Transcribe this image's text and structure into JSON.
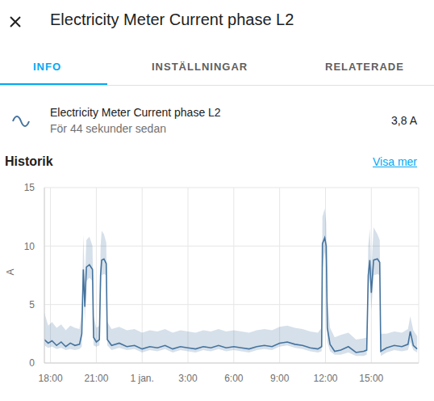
{
  "header": {
    "title": "Electricity Meter Current phase L2"
  },
  "tabs": [
    {
      "label": "INFO",
      "active": true
    },
    {
      "label": "INSTÄLLNINGAR",
      "active": false
    },
    {
      "label": "RELATERADE",
      "active": false
    }
  ],
  "entity": {
    "name": "Electricity Meter Current phase L2",
    "last_changed": "För 44 sekunder sedan",
    "state": "3,8 A"
  },
  "history": {
    "title": "Historik",
    "link": "Visa mer"
  },
  "chart_data": {
    "type": "line",
    "y_label": "A",
    "x": [
      17.6,
      17.85,
      18.1,
      18.4,
      18.7,
      19.0,
      19.3,
      19.6,
      19.9,
      20.05,
      20.15,
      20.25,
      20.35,
      20.55,
      20.75,
      20.82,
      21.0,
      21.2,
      21.28,
      21.35,
      21.5,
      21.65,
      21.72,
      22.0,
      22.5,
      23.0,
      23.5,
      24.0,
      24.5,
      25.0,
      25.5,
      26.0,
      26.5,
      27.0,
      27.5,
      28.0,
      28.5,
      29.0,
      29.5,
      30.0,
      30.5,
      31.0,
      31.5,
      32.0,
      32.5,
      33.0,
      33.5,
      34.0,
      34.5,
      35.0,
      35.5,
      35.75,
      35.8,
      35.95,
      36.05,
      36.12,
      36.3,
      36.6,
      37.0,
      37.5,
      38.0,
      38.5,
      38.7,
      38.8,
      38.9,
      39.0,
      39.15,
      39.4,
      39.55,
      39.62,
      40.0,
      40.5,
      41.0,
      41.4,
      41.55,
      41.75,
      42.0
    ],
    "series": [
      {
        "color": "#44739e",
        "values": [
          2.0,
          1.7,
          1.9,
          1.5,
          1.8,
          1.4,
          1.7,
          1.5,
          1.6,
          2.5,
          8.0,
          4.8,
          8.2,
          8.4,
          8.0,
          2.2,
          1.8,
          2.0,
          7.5,
          8.8,
          8.9,
          8.5,
          2.0,
          1.5,
          1.7,
          1.4,
          1.5,
          1.2,
          1.4,
          1.3,
          1.5,
          1.2,
          1.4,
          1.3,
          1.2,
          1.4,
          1.3,
          1.5,
          1.3,
          1.4,
          1.3,
          1.2,
          1.4,
          1.5,
          1.4,
          1.7,
          1.8,
          1.6,
          1.5,
          1.3,
          1.2,
          1.4,
          10.2,
          10.7,
          10.0,
          3.0,
          1.6,
          1.0,
          1.1,
          1.4,
          0.9,
          1.0,
          1.1,
          7.5,
          8.8,
          6.0,
          8.8,
          8.9,
          8.6,
          1.0,
          1.3,
          1.5,
          1.4,
          1.6,
          2.7,
          1.5,
          1.2
        ],
        "min": [
          1.5,
          1.3,
          1.4,
          1.2,
          1.3,
          1.1,
          1.2,
          1.1,
          1.2,
          1.4,
          6.5,
          3.5,
          7.0,
          7.3,
          7.0,
          1.5,
          1.4,
          1.5,
          5.5,
          7.5,
          7.6,
          7.5,
          1.5,
          1.1,
          1.3,
          1.1,
          1.2,
          0.9,
          1.1,
          1.0,
          1.2,
          0.9,
          1.1,
          1.0,
          0.9,
          1.1,
          1.0,
          1.2,
          1.0,
          1.1,
          1.0,
          0.9,
          1.1,
          1.2,
          1.1,
          1.4,
          1.5,
          1.3,
          1.2,
          1.0,
          0.9,
          1.0,
          8.0,
          9.5,
          8.5,
          1.8,
          1.0,
          0.7,
          0.7,
          0.9,
          0.6,
          0.6,
          0.7,
          6.0,
          7.5,
          4.5,
          7.5,
          7.6,
          7.5,
          0.6,
          0.9,
          1.1,
          1.0,
          1.1,
          1.8,
          1.1,
          0.9
        ],
        "max": [
          4.3,
          3.2,
          3.5,
          3.0,
          3.3,
          2.8,
          3.2,
          3.0,
          2.9,
          4.5,
          11.0,
          7.0,
          10.5,
          10.8,
          10.0,
          4.0,
          3.0,
          3.2,
          10.0,
          11.3,
          11.0,
          10.3,
          3.5,
          2.9,
          3.1,
          2.8,
          2.9,
          2.6,
          2.8,
          2.7,
          2.9,
          2.6,
          2.8,
          2.7,
          2.6,
          2.8,
          2.7,
          2.9,
          2.7,
          2.8,
          2.7,
          2.6,
          2.8,
          2.9,
          2.8,
          3.1,
          3.2,
          3.0,
          2.9,
          2.7,
          2.6,
          3.0,
          12.5,
          13.2,
          12.0,
          5.5,
          3.0,
          2.2,
          2.4,
          2.6,
          2.0,
          2.1,
          2.2,
          10.0,
          11.5,
          8.0,
          11.6,
          11.0,
          10.5,
          2.5,
          2.5,
          2.7,
          2.6,
          2.9,
          4.0,
          2.8,
          2.3
        ]
      }
    ],
    "xlim": [
      17.6,
      42.1
    ],
    "xticks": [
      {
        "value": 18,
        "label": "18:00"
      },
      {
        "value": 21,
        "label": "21:00"
      },
      {
        "value": 24,
        "label": "1 jan."
      },
      {
        "value": 27,
        "label": "3:00"
      },
      {
        "value": 30,
        "label": "6:00"
      },
      {
        "value": 33,
        "label": "9:00"
      },
      {
        "value": 36,
        "label": "12:00"
      },
      {
        "value": 39,
        "label": "15:00"
      }
    ],
    "ylim": [
      0,
      15
    ],
    "yticks": [
      0,
      5,
      10,
      15
    ],
    "grid": true
  }
}
